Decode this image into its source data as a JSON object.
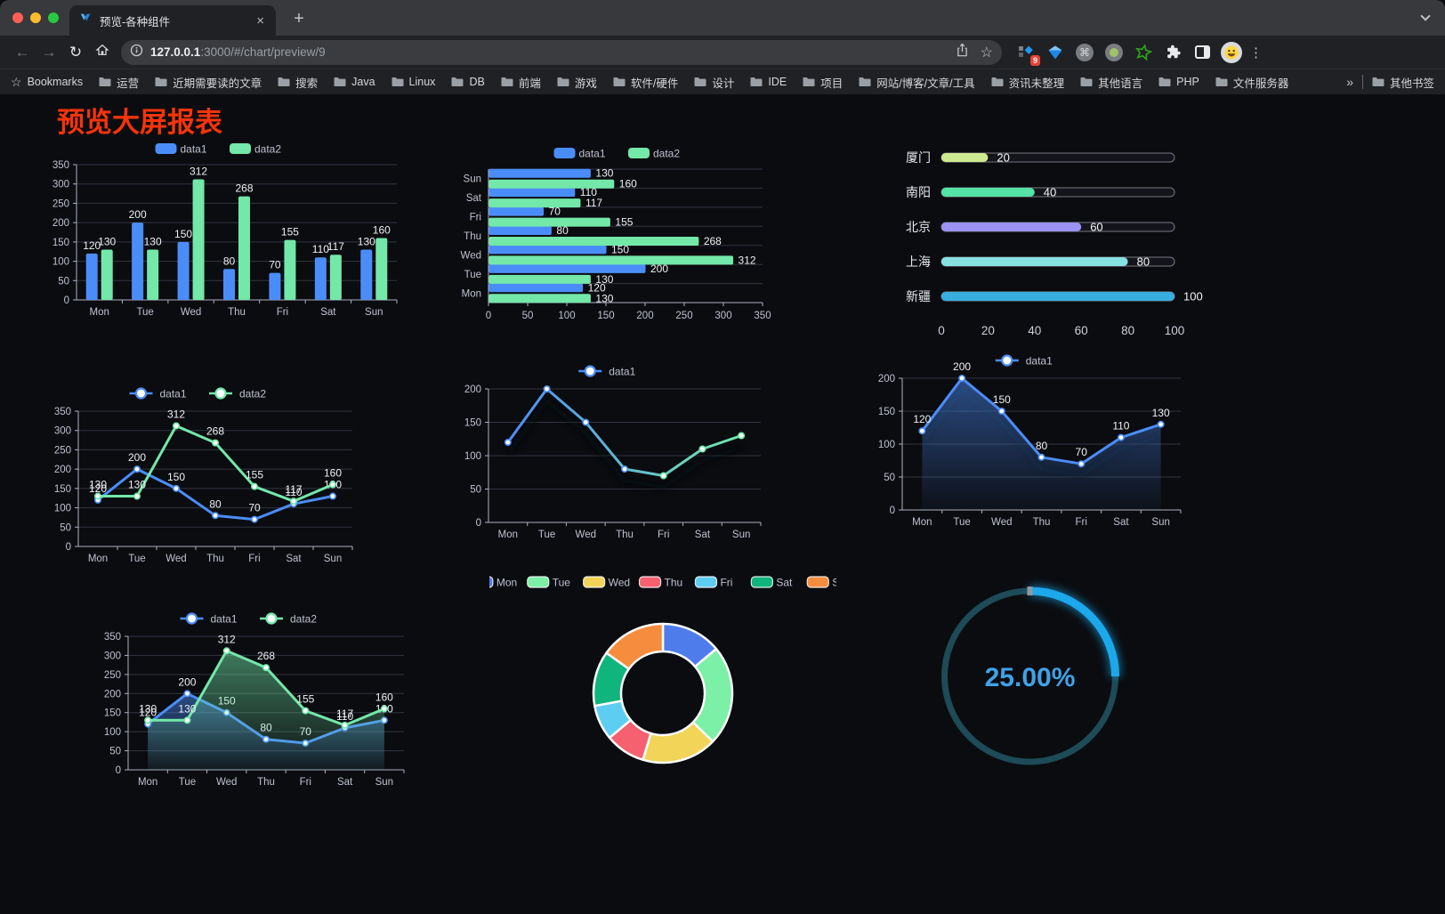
{
  "browser": {
    "tab": {
      "title": "预览-各种组件"
    },
    "glyphs": {
      "close": "×",
      "plus": "+",
      "back": "←",
      "forward": "→",
      "reload": "↻",
      "command": "⌘",
      "kebab": "⋮",
      "star": "☆",
      "bookmarks_star": "☆",
      "overflow": "»"
    },
    "url": {
      "host": "127.0.0.1",
      "rest": ":3000/#/chart/preview/9"
    },
    "extension_badge": "9",
    "bookmarks_label": "Bookmarks",
    "bookmarks": [
      "运营",
      "近期需要读的文章",
      "搜索",
      "Java",
      "Linux",
      "DB",
      "前端",
      "游戏",
      "软件/硬件",
      "设计",
      "IDE",
      "项目",
      "网站/博客/文章/工具",
      "资讯未整理",
      "其他语言",
      "PHP",
      "文件服务器"
    ],
    "other_bookmarks": "其他书签"
  },
  "page": {
    "title": "预览大屏报表",
    "title_color": "#f5340b"
  },
  "chart_data": [
    {
      "type": "bar",
      "title": "grouped-bar",
      "categories": [
        "Mon",
        "Tue",
        "Wed",
        "Thu",
        "Fri",
        "Sat",
        "Sun"
      ],
      "series": [
        {
          "name": "data1",
          "color": "#4b8df8",
          "values": [
            120,
            200,
            150,
            80,
            70,
            110,
            130
          ]
        },
        {
          "name": "data2",
          "color": "#73e8a9",
          "values": [
            130,
            130,
            312,
            268,
            155,
            117,
            160
          ]
        }
      ],
      "ylim": [
        0,
        350
      ],
      "ystep": 50,
      "labels": true,
      "legend": "top",
      "grid": true
    },
    {
      "type": "hbar",
      "title": "grouped-horizontal-bar",
      "categories": [
        "Mon",
        "Tue",
        "Wed",
        "Thu",
        "Fri",
        "Sat",
        "Sun"
      ],
      "series": [
        {
          "name": "data1",
          "color": "#4b8df8",
          "values": [
            120,
            200,
            150,
            80,
            70,
            110,
            130
          ]
        },
        {
          "name": "data2",
          "color": "#73e8a9",
          "values": [
            130,
            130,
            312,
            268,
            155,
            117,
            160
          ]
        }
      ],
      "xlim": [
        0,
        350
      ],
      "xstep": 50,
      "labels": true,
      "legend": "top",
      "grid": true
    },
    {
      "type": "progress",
      "title": "city-progress-bars",
      "max": 100,
      "axis_ticks": [
        0,
        20,
        40,
        60,
        80,
        100
      ],
      "items": [
        {
          "label": "厦门",
          "value": 20,
          "color": "#cdea90"
        },
        {
          "label": "南阳",
          "value": 40,
          "color": "#55e2a7"
        },
        {
          "label": "北京",
          "value": 60,
          "color": "#9b92f3"
        },
        {
          "label": "上海",
          "value": 80,
          "color": "#87e1e1"
        },
        {
          "label": "新疆",
          "value": 100,
          "color": "#38ade0"
        }
      ]
    },
    {
      "type": "line",
      "title": "two-series-line",
      "categories": [
        "Mon",
        "Tue",
        "Wed",
        "Thu",
        "Fri",
        "Sat",
        "Sun"
      ],
      "series": [
        {
          "name": "data1",
          "color": "#4b8df8",
          "values": [
            120,
            200,
            150,
            80,
            70,
            110,
            130
          ],
          "labels": true
        },
        {
          "name": "data2",
          "color": "#73e8a9",
          "values": [
            130,
            130,
            312,
            268,
            155,
            117,
            160
          ],
          "labels": true
        }
      ],
      "ylim": [
        0,
        350
      ],
      "ystep": 50,
      "legend": "top",
      "grid": true
    },
    {
      "type": "line",
      "title": "gradient-line",
      "categories": [
        "Mon",
        "Tue",
        "Wed",
        "Thu",
        "Fri",
        "Sat",
        "Sun"
      ],
      "series": [
        {
          "name": "data1",
          "color": "#4b8df8",
          "color2": "#73e8a9",
          "gradient": true,
          "shadow": true,
          "values": [
            120,
            200,
            150,
            80,
            70,
            110,
            130
          ]
        }
      ],
      "ylim": [
        0,
        200
      ],
      "ystep": 50,
      "legend": "top",
      "grid": true
    },
    {
      "type": "line",
      "title": "area-line",
      "categories": [
        "Mon",
        "Tue",
        "Wed",
        "Thu",
        "Fri",
        "Sat",
        "Sun"
      ],
      "series": [
        {
          "name": "data1",
          "color": "#4b8df8",
          "area": true,
          "shadow": true,
          "labels": true,
          "values": [
            120,
            200,
            150,
            80,
            70,
            110,
            130
          ]
        }
      ],
      "ylim": [
        0,
        200
      ],
      "ystep": 50,
      "legend": "top",
      "grid": true
    },
    {
      "type": "line",
      "title": "two-series-area-line",
      "categories": [
        "Mon",
        "Tue",
        "Wed",
        "Thu",
        "Fri",
        "Sat",
        "Sun"
      ],
      "series": [
        {
          "name": "data1",
          "color": "#4b8df8",
          "area": true,
          "labels": true,
          "values": [
            120,
            200,
            150,
            80,
            70,
            110,
            130
          ]
        },
        {
          "name": "data2",
          "color": "#73e8a9",
          "area": true,
          "labels": true,
          "values": [
            130,
            130,
            312,
            268,
            155,
            117,
            160
          ]
        }
      ],
      "ylim": [
        0,
        350
      ],
      "ystep": 50,
      "legend": "top",
      "grid": true
    },
    {
      "type": "donut",
      "title": "week-donut",
      "categories": [
        "Mon",
        "Tue",
        "Wed",
        "Thu",
        "Fri",
        "Sat",
        "Sun"
      ],
      "values": [
        120,
        200,
        150,
        80,
        70,
        110,
        130
      ],
      "colors": [
        "#4e7ceb",
        "#7cf0a6",
        "#f2d458",
        "#f5616f",
        "#5ecdf2",
        "#10b57e",
        "#f68c3e"
      ],
      "legend": "top"
    },
    {
      "type": "gauge",
      "title": "percent-gauge",
      "value": 25,
      "max": 100,
      "display": "25.00%",
      "color": "#1ca9ec",
      "track_color": "#1d4b57",
      "text_color": "#3fa2e8"
    }
  ]
}
